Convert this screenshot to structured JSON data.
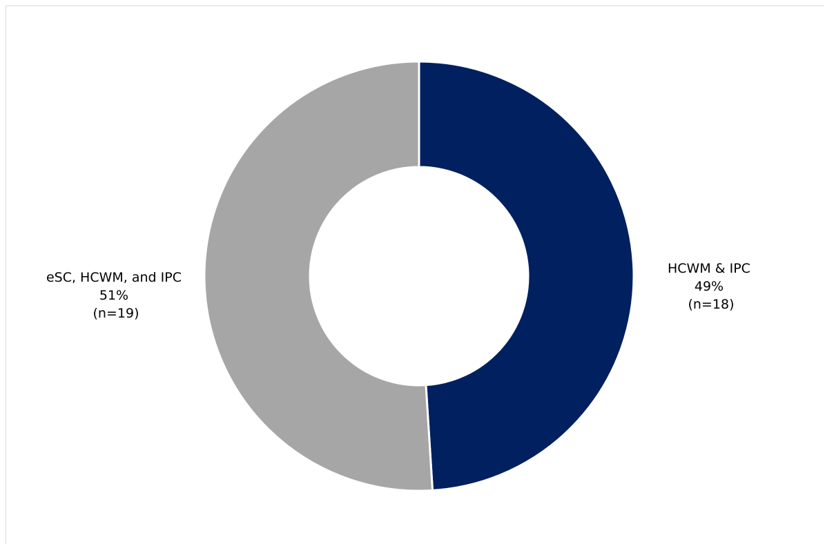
{
  "chart_data": {
    "type": "pie",
    "variant": "donut",
    "title": "",
    "slices": [
      {
        "label": "HCWM & IPC",
        "value": 49,
        "percent_label": "49%",
        "n_label": "(n=18)",
        "color": "#002060"
      },
      {
        "label": "eSC, HCWM, and IPC",
        "value": 51,
        "percent_label": "51%",
        "n_label": "(n=19)",
        "color": "#a6a6a6"
      }
    ],
    "legend": "none",
    "start_angle": "12 o'clock",
    "direction": "clockwise"
  }
}
